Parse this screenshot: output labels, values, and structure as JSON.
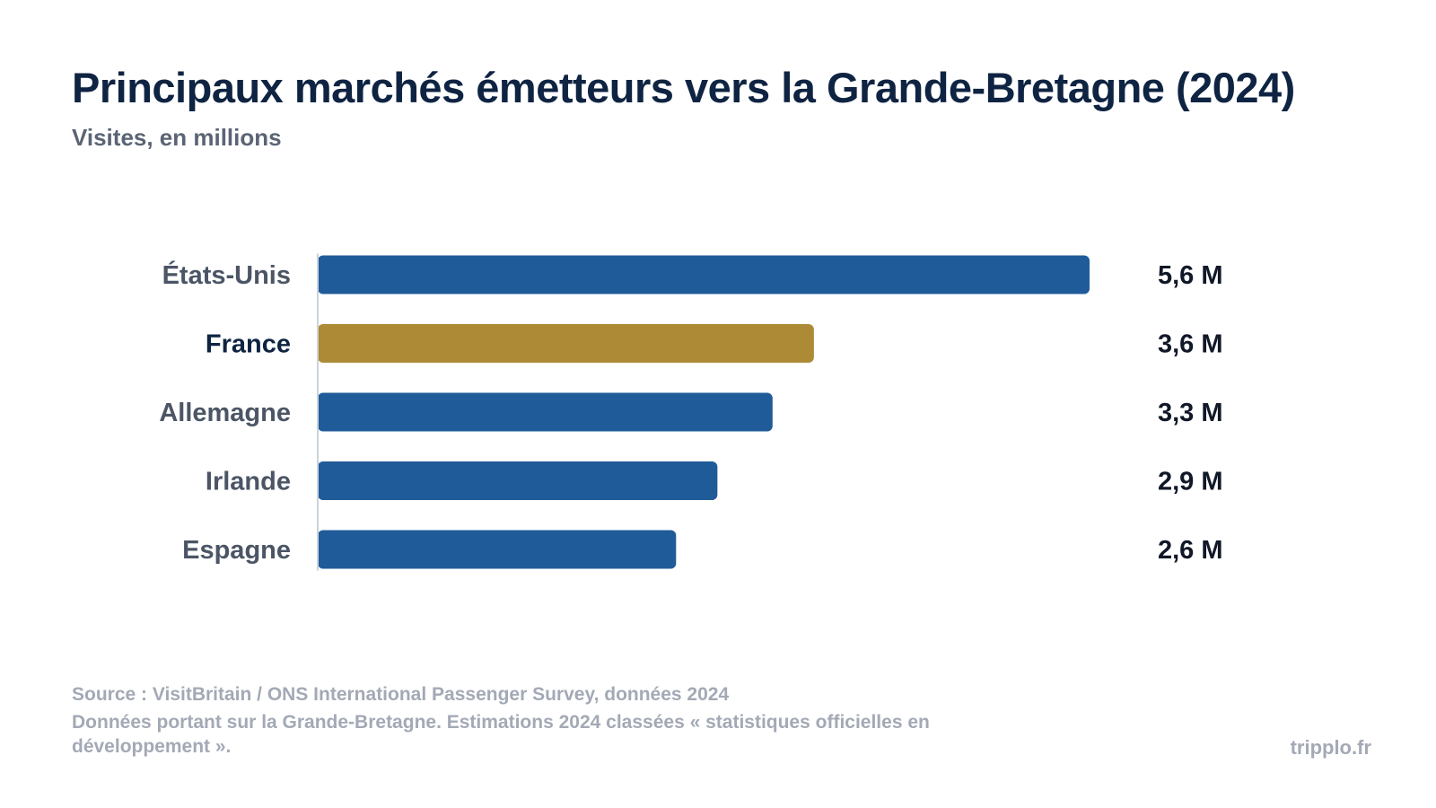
{
  "title": "Principaux marchés émetteurs vers la Grande-Bretagne (2024)",
  "subtitle": "Visites, en millions",
  "footer": {
    "source": "Source : VisitBritain / ONS International Passenger Survey, données 2024",
    "note": "Données portant sur la Grande-Bretagne. Estimations 2024 classées « statistiques officielles en développement »."
  },
  "brand": "tripplo.fr",
  "colors": {
    "bar_default": "#1f5b99",
    "bar_highlight": "#ad8a35",
    "label_default": "#4b5565",
    "label_highlight": "#0f2442",
    "axis_line": "#cbd2dc"
  },
  "chart_data": {
    "type": "bar",
    "orientation": "horizontal",
    "title": "Principaux marchés émetteurs vers la Grande-Bretagne (2024)",
    "subtitle": "Visites, en millions",
    "categories": [
      "États-Unis",
      "France",
      "Allemagne",
      "Irlande",
      "Espagne"
    ],
    "values": [
      5.6,
      3.6,
      3.3,
      2.9,
      2.6
    ],
    "value_labels": [
      "5,6 M",
      "3,6 M",
      "3,3 M",
      "2,9 M",
      "2,6 M"
    ],
    "highlight": "France",
    "xlim": [
      0,
      5.6
    ],
    "grid": false,
    "legend": "none"
  }
}
